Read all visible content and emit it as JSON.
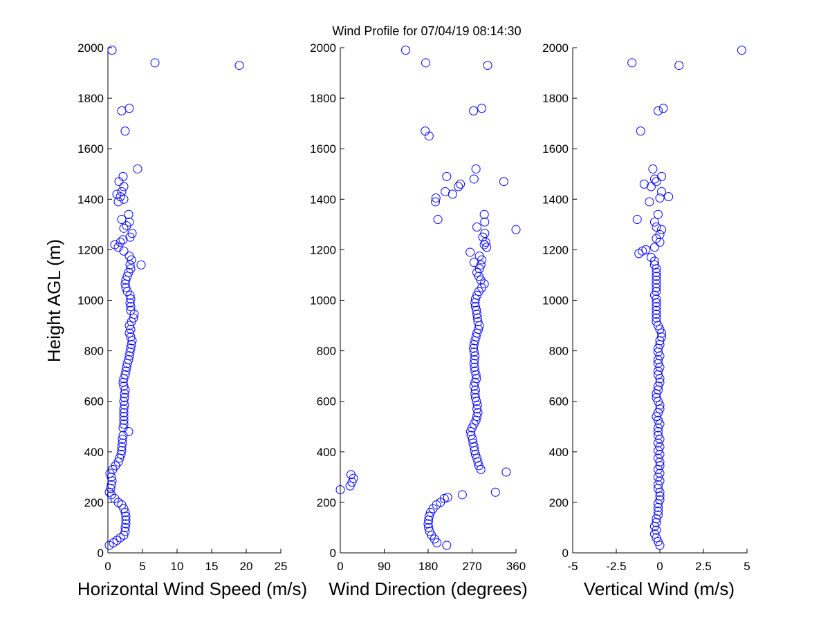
{
  "chart_data": [
    {
      "type": "scatter",
      "title": "Wind Profile for  07/04/19 08:14:30",
      "xlabel": "Horizontal Wind Speed (m/s)",
      "ylabel": "Height AGL (m)",
      "xlim": [
        0,
        25
      ],
      "ylim": [
        0,
        2000
      ],
      "xticks": [
        0,
        5,
        10,
        15,
        20,
        25
      ],
      "xtick_labels": [
        "0",
        "5",
        "10",
        "15",
        "20",
        "25"
      ],
      "yticks": [
        0,
        200,
        400,
        600,
        800,
        1000,
        1200,
        1400,
        1600,
        1800,
        2000
      ],
      "ytick_labels": [
        "0",
        "200",
        "400",
        "600",
        "800",
        "1000",
        "1200",
        "1400",
        "1600",
        "1800",
        "2000"
      ],
      "grid": false,
      "marker_color": "#0000ff",
      "points": [
        [
          0.2,
          30
        ],
        [
          0.8,
          40
        ],
        [
          1.3,
          50
        ],
        [
          1.8,
          60
        ],
        [
          2.3,
          70
        ],
        [
          2.5,
          85
        ],
        [
          2.5,
          100
        ],
        [
          2.6,
          115
        ],
        [
          2.6,
          130
        ],
        [
          2.6,
          145
        ],
        [
          2.5,
          160
        ],
        [
          2.3,
          175
        ],
        [
          2.0,
          190
        ],
        [
          1.5,
          200
        ],
        [
          1.0,
          215
        ],
        [
          0.5,
          230
        ],
        [
          0.2,
          240
        ],
        [
          0.4,
          255
        ],
        [
          0.5,
          270
        ],
        [
          0.6,
          285
        ],
        [
          0.5,
          300
        ],
        [
          0.3,
          315
        ],
        [
          0.7,
          330
        ],
        [
          1.1,
          345
        ],
        [
          1.5,
          360
        ],
        [
          1.7,
          375
        ],
        [
          1.9,
          390
        ],
        [
          2.0,
          405
        ],
        [
          2.0,
          420
        ],
        [
          2.1,
          435
        ],
        [
          2.1,
          450
        ],
        [
          2.2,
          465
        ],
        [
          3.0,
          480
        ],
        [
          2.2,
          495
        ],
        [
          2.3,
          510
        ],
        [
          2.3,
          525
        ],
        [
          2.3,
          540
        ],
        [
          2.3,
          555
        ],
        [
          2.3,
          570
        ],
        [
          2.4,
          585
        ],
        [
          2.3,
          600
        ],
        [
          2.4,
          615
        ],
        [
          2.4,
          630
        ],
        [
          2.5,
          645
        ],
        [
          2.3,
          660
        ],
        [
          2.2,
          675
        ],
        [
          2.3,
          690
        ],
        [
          2.5,
          705
        ],
        [
          2.6,
          720
        ],
        [
          2.7,
          735
        ],
        [
          2.8,
          750
        ],
        [
          3.0,
          765
        ],
        [
          3.1,
          780
        ],
        [
          3.2,
          795
        ],
        [
          3.3,
          810
        ],
        [
          3.4,
          825
        ],
        [
          3.5,
          840
        ],
        [
          3.3,
          855
        ],
        [
          3.1,
          870
        ],
        [
          3.3,
          885
        ],
        [
          3.1,
          900
        ],
        [
          3.4,
          915
        ],
        [
          3.7,
          930
        ],
        [
          3.8,
          945
        ],
        [
          3.3,
          960
        ],
        [
          3.3,
          975
        ],
        [
          3.2,
          990
        ],
        [
          3.3,
          1005
        ],
        [
          3.2,
          1020
        ],
        [
          2.8,
          1035
        ],
        [
          2.6,
          1050
        ],
        [
          2.5,
          1065
        ],
        [
          2.6,
          1080
        ],
        [
          2.8,
          1095
        ],
        [
          3.0,
          1110
        ],
        [
          3.3,
          1125
        ],
        [
          3.2,
          1140
        ],
        [
          4.8,
          1140
        ],
        [
          3.4,
          1160
        ],
        [
          3.1,
          1175
        ],
        [
          2.3,
          1195
        ],
        [
          1.5,
          1210
        ],
        [
          1.0,
          1220
        ],
        [
          1.8,
          1230
        ],
        [
          2.2,
          1240
        ],
        [
          3.2,
          1250
        ],
        [
          3.5,
          1265
        ],
        [
          2.3,
          1285
        ],
        [
          2.7,
          1295
        ],
        [
          3.1,
          1310
        ],
        [
          2.0,
          1320
        ],
        [
          3.0,
          1340
        ],
        [
          1.5,
          1390
        ],
        [
          2.3,
          1400
        ],
        [
          1.8,
          1410
        ],
        [
          1.3,
          1420
        ],
        [
          2.0,
          1430
        ],
        [
          2.3,
          1450
        ],
        [
          1.6,
          1470
        ],
        [
          2.2,
          1490
        ],
        [
          4.3,
          1520
        ],
        [
          2.5,
          1670
        ],
        [
          2.0,
          1750
        ],
        [
          3.1,
          1760
        ],
        [
          19.0,
          1930
        ],
        [
          6.8,
          1940
        ],
        [
          0.6,
          1990
        ]
      ]
    },
    {
      "type": "scatter",
      "xlabel": "Wind Direction (degrees)",
      "ylabel": "",
      "xlim": [
        0,
        360
      ],
      "ylim": [
        0,
        2000
      ],
      "xticks": [
        0,
        90,
        180,
        270,
        360
      ],
      "xtick_labels": [
        "0",
        "90",
        "180",
        "270",
        "360"
      ],
      "yticks": [
        0,
        200,
        400,
        600,
        800,
        1000,
        1200,
        1400,
        1600,
        1800,
        2000
      ],
      "ytick_labels": [
        "0",
        "200",
        "400",
        "600",
        "800",
        "1000",
        "1200",
        "1400",
        "1600",
        "1800",
        "2000"
      ],
      "grid": false,
      "marker_color": "#0000ff",
      "points": [
        [
          218,
          30
        ],
        [
          198,
          40
        ],
        [
          193,
          55
        ],
        [
          187,
          70
        ],
        [
          183,
          85
        ],
        [
          181,
          100
        ],
        [
          180,
          115
        ],
        [
          181,
          130
        ],
        [
          182,
          145
        ],
        [
          185,
          160
        ],
        [
          190,
          175
        ],
        [
          197,
          190
        ],
        [
          205,
          200
        ],
        [
          213,
          215
        ],
        [
          220,
          220
        ],
        [
          250,
          230
        ],
        [
          0,
          250
        ],
        [
          20,
          265
        ],
        [
          24,
          280
        ],
        [
          27,
          295
        ],
        [
          22,
          310
        ],
        [
          318,
          240
        ],
        [
          340,
          320
        ],
        [
          288,
          330
        ],
        [
          284,
          345
        ],
        [
          282,
          360
        ],
        [
          280,
          375
        ],
        [
          277,
          390
        ],
        [
          275,
          405
        ],
        [
          274,
          420
        ],
        [
          272,
          435
        ],
        [
          271,
          450
        ],
        [
          268,
          465
        ],
        [
          267,
          480
        ],
        [
          270,
          495
        ],
        [
          274,
          510
        ],
        [
          278,
          525
        ],
        [
          280,
          540
        ],
        [
          282,
          555
        ],
        [
          280,
          570
        ],
        [
          281,
          585
        ],
        [
          279,
          600
        ],
        [
          277,
          615
        ],
        [
          276,
          630
        ],
        [
          277,
          645
        ],
        [
          274,
          660
        ],
        [
          276,
          675
        ],
        [
          279,
          690
        ],
        [
          278,
          705
        ],
        [
          276,
          720
        ],
        [
          275,
          735
        ],
        [
          274,
          750
        ],
        [
          275,
          765
        ],
        [
          276,
          780
        ],
        [
          274,
          795
        ],
        [
          273,
          810
        ],
        [
          274,
          825
        ],
        [
          276,
          840
        ],
        [
          278,
          855
        ],
        [
          280,
          870
        ],
        [
          283,
          885
        ],
        [
          285,
          900
        ],
        [
          282,
          915
        ],
        [
          281,
          930
        ],
        [
          280,
          945
        ],
        [
          279,
          960
        ],
        [
          277,
          975
        ],
        [
          276,
          990
        ],
        [
          277,
          1005
        ],
        [
          280,
          1020
        ],
        [
          284,
          1035
        ],
        [
          290,
          1050
        ],
        [
          295,
          1065
        ],
        [
          288,
          1080
        ],
        [
          284,
          1095
        ],
        [
          280,
          1110
        ],
        [
          285,
          1125
        ],
        [
          288,
          1140
        ],
        [
          274,
          1150
        ],
        [
          290,
          1160
        ],
        [
          285,
          1175
        ],
        [
          266,
          1190
        ],
        [
          300,
          1210
        ],
        [
          295,
          1220
        ],
        [
          298,
          1230
        ],
        [
          292,
          1250
        ],
        [
          296,
          1265
        ],
        [
          360,
          1280
        ],
        [
          280,
          1290
        ],
        [
          296,
          1310
        ],
        [
          200,
          1320
        ],
        [
          295,
          1340
        ],
        [
          195,
          1390
        ],
        [
          196,
          1405
        ],
        [
          230,
          1420
        ],
        [
          215,
          1430
        ],
        [
          242,
          1450
        ],
        [
          246,
          1460
        ],
        [
          335,
          1470
        ],
        [
          274,
          1480
        ],
        [
          218,
          1490
        ],
        [
          278,
          1520
        ],
        [
          182,
          1650
        ],
        [
          174,
          1670
        ],
        [
          273,
          1750
        ],
        [
          290,
          1760
        ],
        [
          302,
          1930
        ],
        [
          175,
          1940
        ],
        [
          134,
          1990
        ]
      ]
    },
    {
      "type": "scatter",
      "xlabel": "Vertical Wind (m/s)",
      "ylabel": "",
      "xlim": [
        -5,
        5
      ],
      "ylim": [
        0,
        2000
      ],
      "xticks": [
        -5,
        -2.5,
        0,
        2.5,
        5
      ],
      "xtick_labels": [
        "-5",
        "-2.5",
        "0",
        "2.5",
        "5"
      ],
      "yticks": [
        0,
        200,
        400,
        600,
        800,
        1000,
        1200,
        1400,
        1600,
        1800,
        2000
      ],
      "ytick_labels": [
        "0",
        "200",
        "400",
        "600",
        "800",
        "1000",
        "1200",
        "1400",
        "1600",
        "1800",
        "2000"
      ],
      "grid": false,
      "marker_color": "#0000ff",
      "points": [
        [
          0.0,
          30
        ],
        [
          -0.1,
          45
        ],
        [
          -0.2,
          60
        ],
        [
          -0.3,
          75
        ],
        [
          -0.2,
          90
        ],
        [
          -0.3,
          105
        ],
        [
          -0.2,
          120
        ],
        [
          -0.2,
          135
        ],
        [
          -0.1,
          150
        ],
        [
          -0.1,
          165
        ],
        [
          -0.1,
          180
        ],
        [
          -0.1,
          195
        ],
        [
          0.0,
          210
        ],
        [
          0.0,
          225
        ],
        [
          0.0,
          240
        ],
        [
          -0.1,
          255
        ],
        [
          -0.1,
          270
        ],
        [
          0.0,
          285
        ],
        [
          -0.1,
          300
        ],
        [
          0.0,
          315
        ],
        [
          -0.1,
          330
        ],
        [
          0.0,
          345
        ],
        [
          0.0,
          360
        ],
        [
          -0.1,
          375
        ],
        [
          0.0,
          390
        ],
        [
          -0.1,
          405
        ],
        [
          0.0,
          420
        ],
        [
          -0.1,
          435
        ],
        [
          0.0,
          450
        ],
        [
          -0.1,
          465
        ],
        [
          -0.1,
          480
        ],
        [
          -0.1,
          495
        ],
        [
          0.0,
          510
        ],
        [
          -0.1,
          525
        ],
        [
          -0.2,
          540
        ],
        [
          -0.1,
          555
        ],
        [
          0.0,
          570
        ],
        [
          0.0,
          585
        ],
        [
          -0.1,
          600
        ],
        [
          -0.2,
          615
        ],
        [
          -0.2,
          630
        ],
        [
          -0.1,
          645
        ],
        [
          -0.1,
          660
        ],
        [
          0.0,
          675
        ],
        [
          0.0,
          690
        ],
        [
          -0.1,
          705
        ],
        [
          -0.1,
          720
        ],
        [
          0.0,
          735
        ],
        [
          -0.1,
          750
        ],
        [
          -0.1,
          765
        ],
        [
          0.0,
          780
        ],
        [
          -0.1,
          795
        ],
        [
          -0.1,
          810
        ],
        [
          0.0,
          825
        ],
        [
          0.0,
          840
        ],
        [
          0.1,
          855
        ],
        [
          0.1,
          870
        ],
        [
          0.0,
          885
        ],
        [
          -0.1,
          900
        ],
        [
          -0.2,
          915
        ],
        [
          -0.2,
          930
        ],
        [
          -0.2,
          945
        ],
        [
          -0.2,
          960
        ],
        [
          -0.2,
          975
        ],
        [
          -0.2,
          990
        ],
        [
          -0.2,
          1005
        ],
        [
          -0.3,
          1020
        ],
        [
          -0.2,
          1035
        ],
        [
          -0.2,
          1050
        ],
        [
          -0.2,
          1065
        ],
        [
          -0.2,
          1080
        ],
        [
          -0.2,
          1095
        ],
        [
          -0.2,
          1110
        ],
        [
          -0.2,
          1125
        ],
        [
          -0.3,
          1140
        ],
        [
          -0.3,
          1155
        ],
        [
          -0.5,
          1170
        ],
        [
          -1.2,
          1185
        ],
        [
          -1.0,
          1195
        ],
        [
          -0.8,
          1200
        ],
        [
          -0.3,
          1210
        ],
        [
          0.0,
          1230
        ],
        [
          -0.2,
          1245
        ],
        [
          0.0,
          1260
        ],
        [
          0.1,
          1280
        ],
        [
          -0.2,
          1290
        ],
        [
          -0.3,
          1310
        ],
        [
          -1.3,
          1320
        ],
        [
          -0.1,
          1340
        ],
        [
          -0.6,
          1390
        ],
        [
          0.0,
          1405
        ],
        [
          0.5,
          1410
        ],
        [
          0.1,
          1430
        ],
        [
          -0.5,
          1450
        ],
        [
          -0.9,
          1460
        ],
        [
          -0.2,
          1470
        ],
        [
          -0.3,
          1480
        ],
        [
          0.1,
          1490
        ],
        [
          -0.4,
          1520
        ],
        [
          -1.1,
          1670
        ],
        [
          -0.1,
          1750
        ],
        [
          0.2,
          1760
        ],
        [
          1.1,
          1930
        ],
        [
          -1.6,
          1940
        ],
        [
          4.7,
          1990
        ]
      ]
    }
  ]
}
